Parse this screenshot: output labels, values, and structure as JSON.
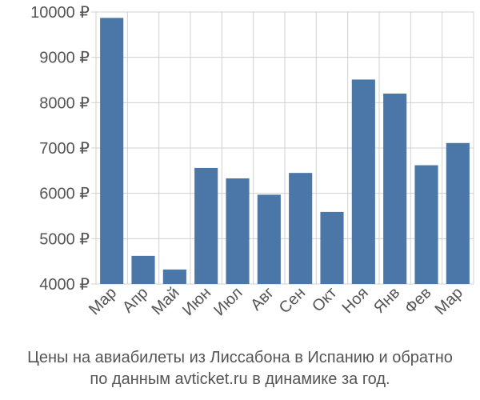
{
  "chart_data": {
    "type": "bar",
    "categories": [
      "Мар",
      "Апр",
      "Май",
      "Июн",
      "Июл",
      "Авг",
      "Сен",
      "Окт",
      "Ноя",
      "Янв",
      "Фев",
      "Мар"
    ],
    "values": [
      9870,
      4620,
      4320,
      6560,
      6330,
      5970,
      6450,
      5590,
      8510,
      8200,
      6620,
      7110
    ],
    "y_ticks": [
      4000,
      5000,
      6000,
      7000,
      8000,
      9000,
      10000
    ],
    "y_tick_suffix": " ₽",
    "ylim": [
      4000,
      10000
    ],
    "grid": true,
    "bar_color": "#4a76a8",
    "grid_color": "#d0d0d0",
    "axis_label_color": "#555555"
  },
  "caption": {
    "line1": "Цены на авиабилеты из Лиссабона в Испанию и обратно",
    "line2": "по данным avticket.ru в динамике за год."
  }
}
